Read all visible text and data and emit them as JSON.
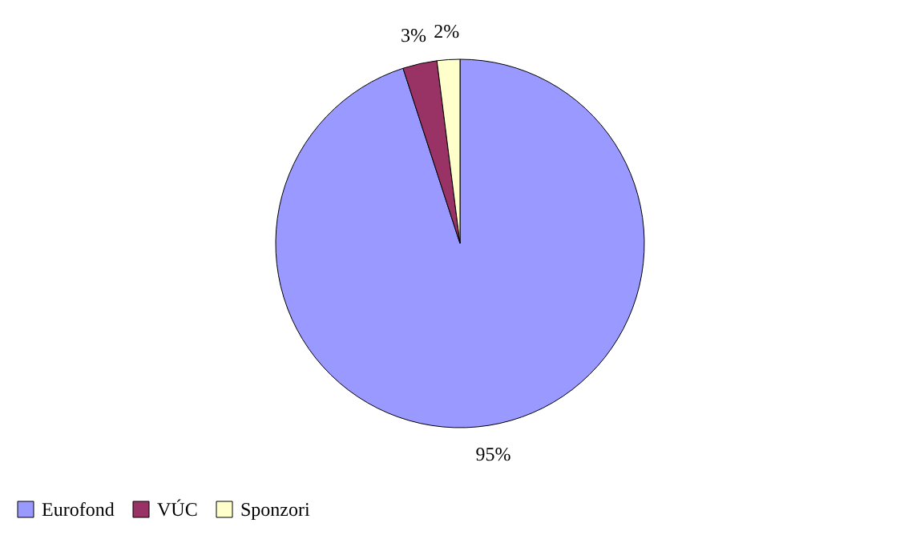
{
  "chart_data": {
    "type": "pie",
    "categories": [
      "Eurofond",
      "VÚC",
      "Sponzori"
    ],
    "values": [
      95,
      3,
      2
    ],
    "colors": [
      "#9999ff",
      "#993366",
      "#ffffcc"
    ],
    "value_labels": [
      "95%",
      "3%",
      "2%"
    ],
    "legend": "bottom"
  }
}
